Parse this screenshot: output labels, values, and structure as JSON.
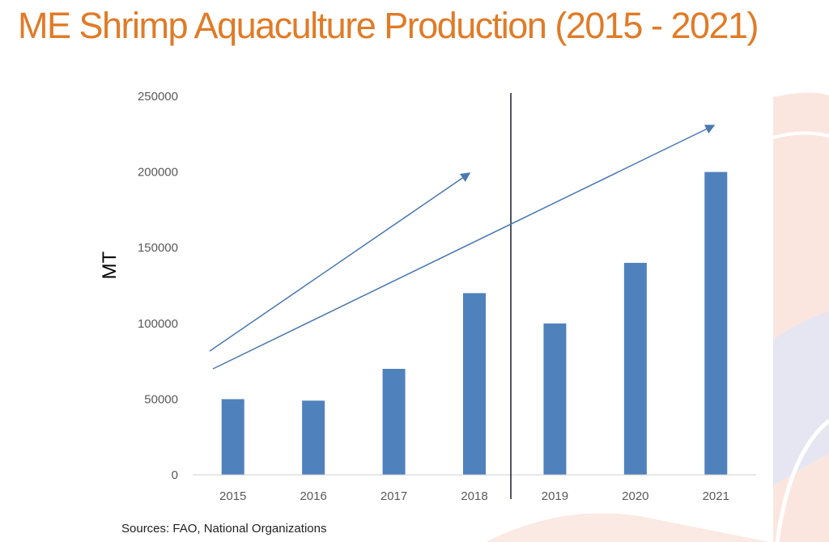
{
  "page_title": "ME Shrimp Aquaculture Production (2015 - 2021)",
  "source_note": "Sources: FAO, National Organizations",
  "colors": {
    "title": "#e07b27",
    "bar": "#4f81bd",
    "arrow": "#4a78b0",
    "divider": "#1a1a2e"
  },
  "chart_data": {
    "type": "bar",
    "title": "",
    "xlabel": "",
    "ylabel": "MT",
    "categories": [
      "2015",
      "2016",
      "2017",
      "2018",
      "2019",
      "2020",
      "2021"
    ],
    "values": [
      50000,
      49000,
      70000,
      120000,
      100000,
      140000,
      200000
    ],
    "ylim": [
      0,
      250000
    ],
    "yticks": [
      "0",
      "50000",
      "100000",
      "150000",
      "200000",
      "250000"
    ],
    "grid": false,
    "legend": "none",
    "annotations": [
      "trend arrow 2015-2018",
      "trend arrow 2015-2021",
      "vertical divider between 2018 and 2019"
    ]
  }
}
